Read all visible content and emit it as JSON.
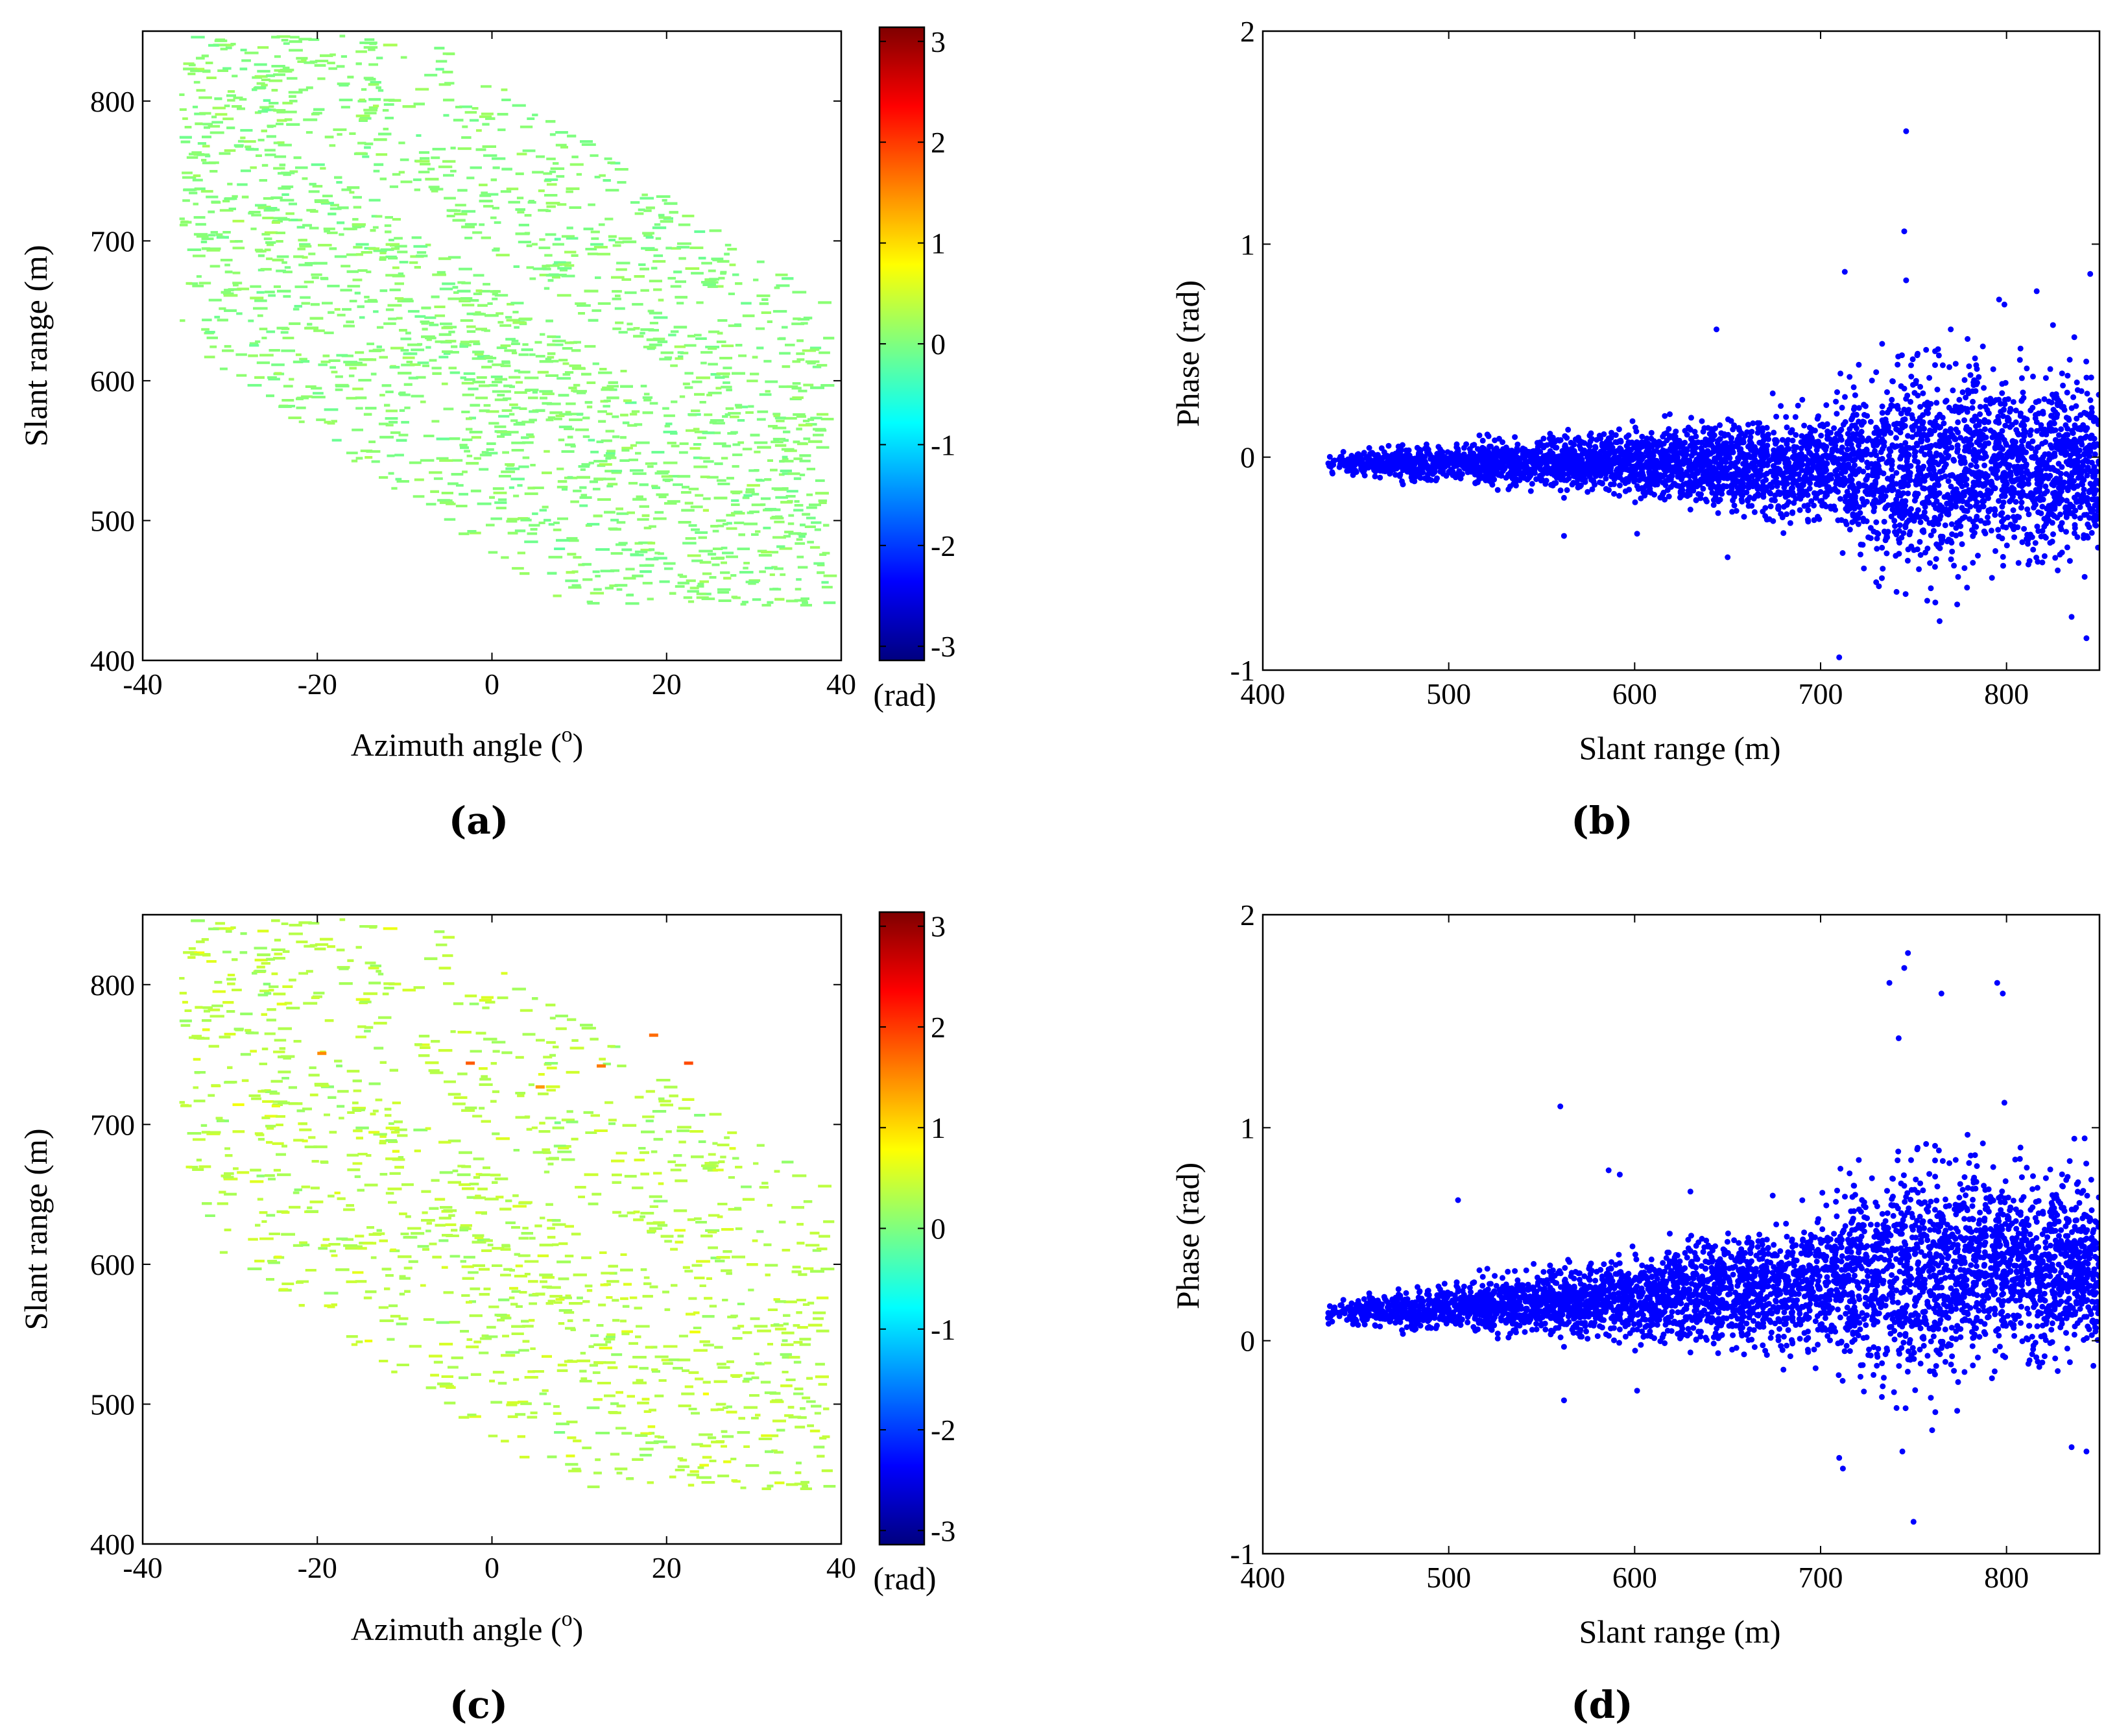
{
  "figure": {
    "colormap": {
      "name": "jet",
      "range": [
        -3.14,
        3.14
      ],
      "stops": [
        "#00007f",
        "#0000ff",
        "#007fff",
        "#00ffff",
        "#7fff7f",
        "#ffff00",
        "#ff7f00",
        "#ff0000",
        "#7f0000"
      ]
    },
    "point_color": "#0000ff"
  },
  "chart_data": [
    {
      "id": "a",
      "type": "heatmap",
      "panel_label": "(a)",
      "xlabel": "Azimuth angle (",
      "xlabel_sup": "o",
      "xlabel_suffix": ")",
      "ylabel": "Slant range (m)",
      "xlim": [
        -40,
        40
      ],
      "ylim": [
        400,
        850
      ],
      "xticks": [
        "-40",
        "-20",
        "0",
        "20",
        "40"
      ],
      "yticks": [
        "400",
        "500",
        "600",
        "700",
        "800"
      ],
      "colorbar": {
        "ticks": [
          "3",
          "2",
          "1",
          "0",
          "-1",
          "-2",
          "-3"
        ],
        "unit": "(rad)",
        "range": [
          -3.14,
          3.14
        ]
      },
      "phase_level": 0.05,
      "phase_spread": 0.08,
      "outliers": []
    },
    {
      "id": "b",
      "type": "scatter",
      "panel_label": "(b)",
      "xlabel": "Slant range (m)",
      "ylabel": "Phase (rad)",
      "xlim": [
        400,
        850
      ],
      "ylim": [
        -1,
        2
      ],
      "xticks": [
        "400",
        "500",
        "600",
        "700",
        "800"
      ],
      "yticks": [
        "-1",
        "0",
        "1",
        "2"
      ],
      "trend": {
        "x": [
          435,
          500,
          600,
          700,
          800,
          850
        ],
        "y": [
          -0.03,
          -0.03,
          -0.02,
          -0.05,
          -0.05,
          -0.05
        ]
      },
      "spread": {
        "x": [
          435,
          500,
          600,
          700,
          740,
          800,
          850
        ],
        "y": [
          0.02,
          0.04,
          0.07,
          0.12,
          0.22,
          0.2,
          0.18
        ]
      },
      "extreme_points": [
        {
          "x": 746,
          "y": 1.53
        },
        {
          "x": 745,
          "y": 1.06
        },
        {
          "x": 713,
          "y": 0.87
        },
        {
          "x": 845,
          "y": 0.86
        },
        {
          "x": 746,
          "y": 0.83
        },
        {
          "x": 796,
          "y": 0.74
        },
        {
          "x": 644,
          "y": 0.6
        },
        {
          "x": 770,
          "y": 0.6
        },
        {
          "x": 825,
          "y": 0.62
        },
        {
          "x": 710,
          "y": -0.94
        },
        {
          "x": 843,
          "y": -0.85
        },
        {
          "x": 764,
          "y": -0.77
        },
        {
          "x": 835,
          "y": -0.75
        },
        {
          "x": 650,
          "y": -0.47
        },
        {
          "x": 562,
          "y": -0.37
        }
      ]
    },
    {
      "id": "c",
      "type": "heatmap",
      "panel_label": "(c)",
      "xlabel": "Azimuth angle (",
      "xlabel_sup": "o",
      "xlabel_suffix": ")",
      "ylabel": "Slant range (m)",
      "xlim": [
        -40,
        40
      ],
      "ylim": [
        400,
        850
      ],
      "xticks": [
        "-40",
        "-20",
        "0",
        "20",
        "40"
      ],
      "yticks": [
        "400",
        "500",
        "600",
        "700",
        "800"
      ],
      "colorbar": {
        "ticks": [
          "3",
          "2",
          "1",
          "0",
          "-1",
          "-2",
          "-3"
        ],
        "unit": "(rad)",
        "range": [
          -3.14,
          3.14
        ]
      },
      "phase_level": 0.35,
      "phase_spread": 0.12,
      "outliers": [
        {
          "x": -3,
          "y": 745,
          "phase": 1.8
        },
        {
          "x": 12,
          "y": 743,
          "phase": 1.6
        },
        {
          "x": 18,
          "y": 765,
          "phase": 1.7
        },
        {
          "x": 22,
          "y": 745,
          "phase": 1.9
        },
        {
          "x": -20,
          "y": 752,
          "phase": 1.5
        },
        {
          "x": 5,
          "y": 728,
          "phase": 1.4
        }
      ]
    },
    {
      "id": "d",
      "type": "scatter",
      "panel_label": "(d)",
      "xlabel": "Slant range (m)",
      "ylabel": "Phase (rad)",
      "xlim": [
        400,
        850
      ],
      "ylim": [
        -1,
        2
      ],
      "xticks": [
        "400",
        "500",
        "600",
        "700",
        "800"
      ],
      "yticks": [
        "-1",
        "0",
        "1",
        "2"
      ],
      "trend": {
        "x": [
          435,
          500,
          600,
          700,
          750,
          800,
          850
        ],
        "y": [
          0.13,
          0.16,
          0.2,
          0.27,
          0.33,
          0.35,
          0.33
        ]
      },
      "spread": {
        "x": [
          435,
          500,
          600,
          700,
          740,
          800,
          850
        ],
        "y": [
          0.02,
          0.05,
          0.09,
          0.15,
          0.24,
          0.2,
          0.18
        ]
      },
      "extreme_points": [
        {
          "x": 747,
          "y": 1.82
        },
        {
          "x": 745,
          "y": 1.75
        },
        {
          "x": 737,
          "y": 1.68
        },
        {
          "x": 795,
          "y": 1.68
        },
        {
          "x": 798,
          "y": 1.63
        },
        {
          "x": 765,
          "y": 1.63
        },
        {
          "x": 742,
          "y": 1.42
        },
        {
          "x": 560,
          "y": 1.1
        },
        {
          "x": 842,
          "y": 0.95
        },
        {
          "x": 586,
          "y": 0.8
        },
        {
          "x": 592,
          "y": 0.78
        },
        {
          "x": 630,
          "y": 0.7
        },
        {
          "x": 505,
          "y": 0.66
        },
        {
          "x": 750,
          "y": -0.85
        },
        {
          "x": 712,
          "y": -0.6
        },
        {
          "x": 710,
          "y": -0.55
        },
        {
          "x": 843,
          "y": -0.52
        },
        {
          "x": 835,
          "y": -0.5
        },
        {
          "x": 744,
          "y": -0.52
        },
        {
          "x": 760,
          "y": -0.42
        },
        {
          "x": 562,
          "y": -0.28
        }
      ]
    }
  ]
}
